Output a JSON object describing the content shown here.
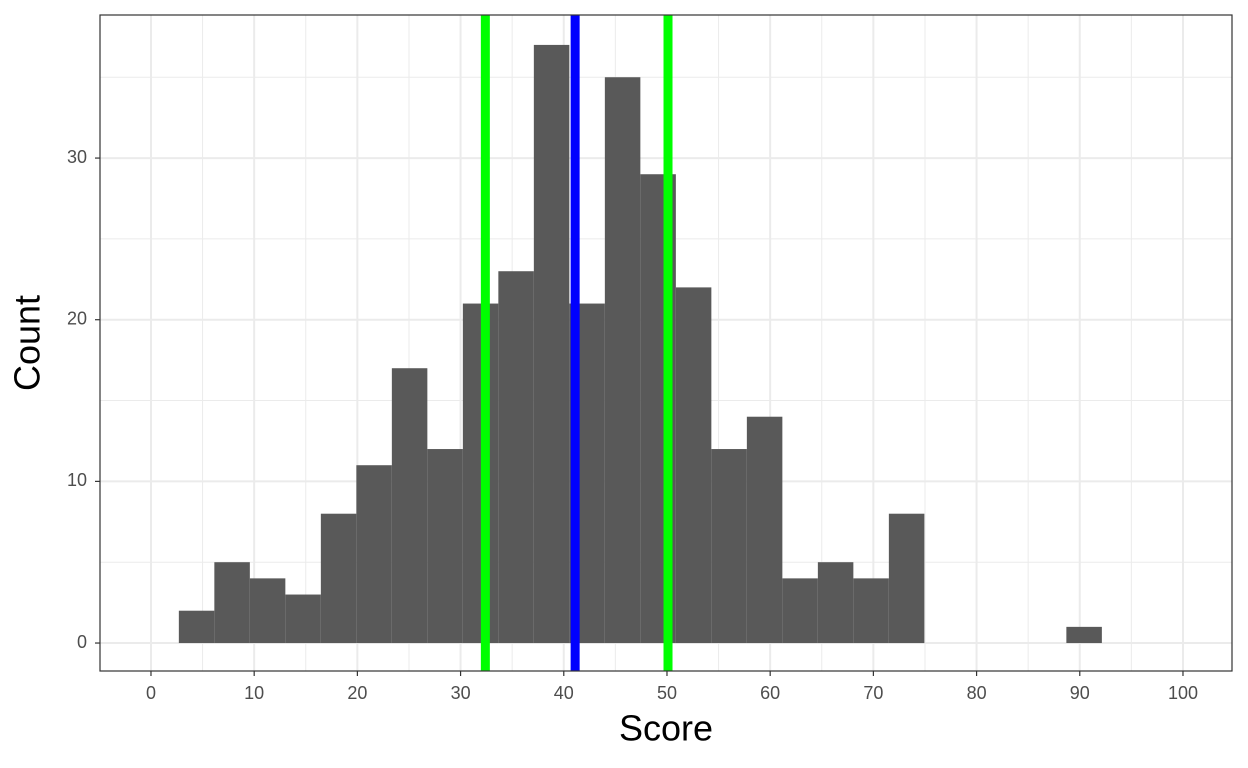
{
  "chart_data": {
    "type": "histogram",
    "xlabel": "Score",
    "ylabel": "Count",
    "bins": [
      2.7,
      6.14,
      9.58,
      13.02,
      16.46,
      19.9,
      23.34,
      26.78,
      30.22,
      33.66,
      37.1,
      40.54,
      43.98,
      47.42,
      50.86,
      54.3,
      57.74,
      61.18,
      64.62,
      68.06,
      71.5,
      74.94,
      78.38,
      81.82,
      85.26,
      88.7,
      92.14
    ],
    "counts": [
      2,
      5,
      4,
      3,
      8,
      11,
      17,
      12,
      21,
      23,
      37,
      21,
      35,
      29,
      22,
      12,
      14,
      4,
      5,
      4,
      8,
      0,
      0,
      0,
      0,
      1
    ],
    "color": "#595959",
    "vlines": [
      {
        "value": 32.4,
        "color": "#00ff00"
      },
      {
        "value": 41.1,
        "color": "#0000ff"
      },
      {
        "value": 50.1,
        "color": "#00ff00"
      }
    ],
    "xlim": [
      -4.94,
      104.75
    ],
    "ylim": [
      -1.73,
      38.85
    ],
    "xticks": [
      0,
      10,
      20,
      30,
      40,
      50,
      60,
      70,
      80,
      90,
      100
    ],
    "yticks": [
      0,
      10,
      20,
      30
    ],
    "grid": true
  }
}
